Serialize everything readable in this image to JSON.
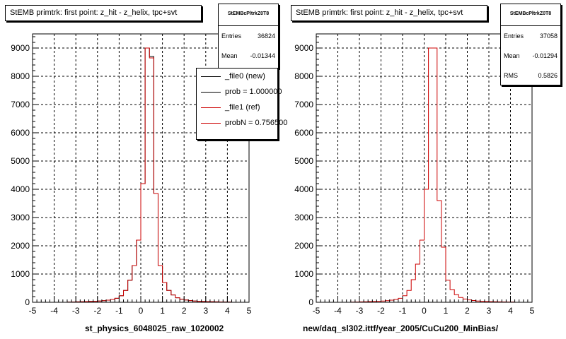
{
  "panels": [
    {
      "title": "StEMB primtrk: first point: z_hit - z_helix, tpc+svt",
      "stats": {
        "name": "StEMBcPltrkZ0T8",
        "entries_label": "Entries",
        "entries": "36824",
        "mean_label": "Mean",
        "mean": "-0.01344"
      },
      "xlabel": "st_physics_6048025_raw_1020002",
      "legend": [
        {
          "label": "_file0 (new)",
          "color": "#000000"
        },
        {
          "label": "prob = 1.000000",
          "color": "#000000"
        },
        {
          "label": "_file1 (ref)",
          "color": "#cc0000"
        },
        {
          "label": "probN = 0.756500",
          "color": "#cc0000"
        }
      ]
    },
    {
      "title": "StEMB primtrk: first point: z_hit - z_helix, tpc+svt",
      "stats": {
        "name": "StEMBcPltrkZ0T8",
        "entries_label": "Entries",
        "entries": "37058",
        "mean_label": "Mean",
        "mean": "-0.01294",
        "rms_label": "RMS",
        "rms": "0.5826"
      },
      "xlabel": "new/daq_sl302.ittf/year_2005/CuCu200_MinBias/"
    }
  ],
  "chart_data": [
    {
      "type": "histogram",
      "xlim": [
        -5,
        5
      ],
      "ylim": [
        0,
        9500
      ],
      "x_ticks": [
        "-5",
        "-4",
        "-3",
        "-2",
        "-1",
        "0",
        "1",
        "2",
        "3",
        "4",
        "5"
      ],
      "y_ticks": [
        "0",
        "1000",
        "2000",
        "3000",
        "4000",
        "5000",
        "6000",
        "7000",
        "8000",
        "9000"
      ],
      "grid": true,
      "bin_edges_start": -5,
      "bin_width": 0.2,
      "series": [
        {
          "name": "_file0 (new)",
          "color": "#000000",
          "values": [
            0,
            0,
            0,
            0,
            0,
            0,
            0,
            0,
            5,
            10,
            15,
            20,
            25,
            30,
            35,
            45,
            55,
            75,
            100,
            140,
            230,
            420,
            780,
            1300,
            2200,
            4200,
            9000,
            8700,
            3850,
            1300,
            700,
            420,
            260,
            160,
            110,
            80,
            60,
            45,
            35,
            28,
            22,
            18,
            15,
            12,
            10,
            8,
            0,
            0,
            0,
            0
          ]
        },
        {
          "name": "_file1 (ref)",
          "color": "#cc0000",
          "values": [
            0,
            0,
            0,
            0,
            0,
            0,
            0,
            0,
            5,
            10,
            15,
            20,
            25,
            30,
            35,
            45,
            55,
            75,
            100,
            140,
            230,
            420,
            780,
            1300,
            2200,
            4200,
            9000,
            8650,
            3850,
            1300,
            700,
            420,
            260,
            160,
            110,
            80,
            60,
            45,
            35,
            28,
            22,
            18,
            15,
            12,
            10,
            8,
            0,
            0,
            0,
            0
          ]
        }
      ]
    },
    {
      "type": "histogram",
      "xlim": [
        -5,
        5
      ],
      "ylim": [
        0,
        9500
      ],
      "x_ticks": [
        "-5",
        "-4",
        "-3",
        "-2",
        "-1",
        "0",
        "1",
        "2",
        "3",
        "4",
        "5"
      ],
      "y_ticks": [
        "0",
        "1000",
        "2000",
        "3000",
        "4000",
        "5000",
        "6000",
        "7000",
        "8000",
        "9000"
      ],
      "grid": true,
      "bin_edges_start": -5,
      "bin_width": 0.2,
      "series": [
        {
          "name": "",
          "color": "#cc0000",
          "values": [
            0,
            0,
            0,
            0,
            0,
            0,
            0,
            0,
            5,
            10,
            15,
            20,
            25,
            30,
            35,
            45,
            55,
            75,
            100,
            140,
            230,
            420,
            800,
            1350,
            2200,
            4000,
            9000,
            9000,
            3600,
            1950,
            780,
            450,
            270,
            170,
            115,
            85,
            62,
            45,
            35,
            28,
            22,
            18,
            15,
            12,
            10,
            8,
            0,
            0,
            0,
            0
          ]
        }
      ]
    }
  ]
}
